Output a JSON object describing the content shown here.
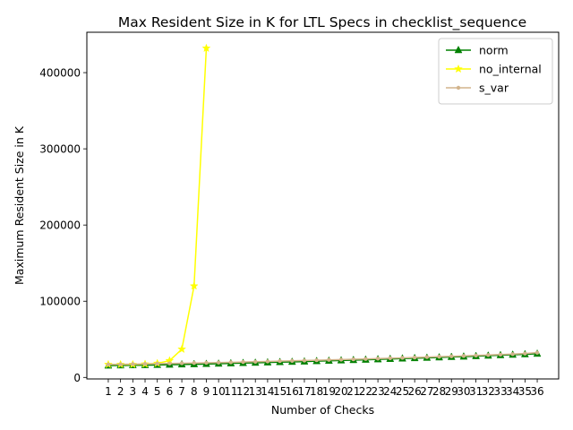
{
  "chart_data": {
    "type": "line",
    "title": "Max Resident Size in K for LTL Specs in checklist_sequence",
    "xlabel": "Number of Checks",
    "ylabel": "Maximum Resident Size in K",
    "x": [
      1,
      2,
      3,
      4,
      5,
      6,
      7,
      8,
      9,
      10,
      11,
      12,
      13,
      14,
      15,
      16,
      17,
      18,
      19,
      20,
      21,
      22,
      23,
      24,
      25,
      26,
      27,
      28,
      29,
      30,
      31,
      32,
      33,
      34,
      35,
      36
    ],
    "xlim": [
      -0.75,
      37.75
    ],
    "ylim": [
      -2000,
      453000
    ],
    "yticks": [
      0,
      100000,
      200000,
      300000,
      400000
    ],
    "grid": false,
    "legend_position": "top-right",
    "series": [
      {
        "name": "norm",
        "color": "#008000",
        "marker": "triangle",
        "x": [
          1,
          2,
          3,
          4,
          5,
          6,
          7,
          8,
          9,
          10,
          11,
          12,
          13,
          14,
          15,
          16,
          17,
          18,
          19,
          20,
          21,
          22,
          23,
          24,
          25,
          26,
          27,
          28,
          29,
          30,
          31,
          32,
          33,
          34,
          35,
          36
        ],
        "values": [
          15500,
          15700,
          15900,
          16100,
          16300,
          16700,
          17000,
          17300,
          17600,
          18000,
          18400,
          18800,
          19200,
          19600,
          20000,
          20400,
          20800,
          21300,
          21800,
          22200,
          22700,
          23200,
          23700,
          24200,
          24700,
          25200,
          25700,
          26200,
          26800,
          27300,
          27900,
          28500,
          29100,
          29700,
          30300,
          31000
        ]
      },
      {
        "name": "no_internal",
        "color": "#ffff00",
        "marker": "star",
        "x": [
          1,
          2,
          3,
          4,
          5,
          6,
          7,
          8,
          9
        ],
        "values": [
          17000,
          17000,
          17000,
          17500,
          18500,
          22000,
          37000,
          120000,
          432000
        ]
      },
      {
        "name": "s_var",
        "color": "#d2b48c",
        "marker": "point",
        "x": [
          1,
          2,
          3,
          4,
          5,
          6,
          7,
          8,
          9,
          10,
          11,
          12,
          13,
          14,
          15,
          16,
          17,
          18,
          19,
          20,
          21,
          22,
          23,
          24,
          25,
          26,
          27,
          28,
          29,
          30,
          31,
          32,
          33,
          34,
          35,
          36
        ],
        "values": [
          17000,
          17200,
          17400,
          17700,
          18000,
          18300,
          18600,
          18900,
          19200,
          19500,
          19800,
          20200,
          20600,
          21000,
          21400,
          21800,
          22200,
          22600,
          23000,
          23400,
          23800,
          24200,
          24700,
          25200,
          25700,
          26200,
          26700,
          27200,
          27700,
          28200,
          28800,
          29400,
          30000,
          30600,
          31300,
          32500
        ]
      }
    ]
  }
}
